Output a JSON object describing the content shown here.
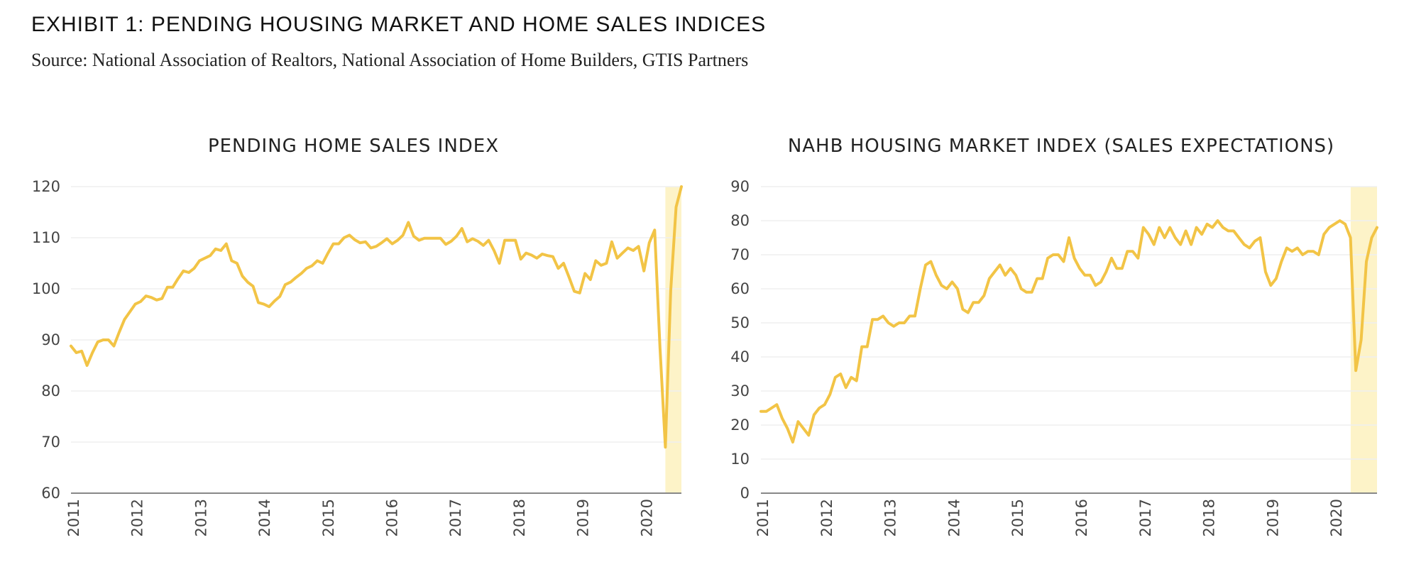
{
  "exhibit": {
    "title": "EXHIBIT 1: PENDING HOUSING MARKET AND HOME SALES INDICES",
    "source": "Source: National Association of Realtors, National Association of Home Builders, GTIS Partners"
  },
  "colors": {
    "line": "#F2C446",
    "highlight": "#FDF3C8",
    "grid": "#EFEFEF",
    "axis": "#888888"
  },
  "chart_data": [
    {
      "type": "line",
      "title": "PENDING HOME SALES INDEX",
      "xlabel": "",
      "ylabel": "",
      "x_range": [
        2011.0,
        2020.5
      ],
      "ylim": [
        60,
        120
      ],
      "y_ticks": [
        60,
        70,
        80,
        90,
        100,
        110,
        120
      ],
      "x_ticks": [
        "2011",
        "2012",
        "2013",
        "2014",
        "2015",
        "2016",
        "2017",
        "2018",
        "2019",
        "2020"
      ],
      "highlight_range": [
        2020.25,
        2020.5
      ],
      "grid": true,
      "series": [
        {
          "values": [
            88.8,
            87.5,
            87.8,
            85.0,
            87.5,
            89.6,
            90.0,
            90.0,
            88.8,
            91.5,
            94.0,
            95.5,
            97.0,
            97.5,
            98.6,
            98.3,
            97.8,
            98.1,
            100.3,
            100.3,
            102.0,
            103.5,
            103.2,
            104.0,
            105.5,
            106.0,
            106.5,
            107.8,
            107.5,
            108.8,
            105.5,
            105.0,
            102.5,
            101.3,
            100.5,
            97.3,
            97.0,
            96.5,
            97.6,
            98.5,
            100.8,
            101.3,
            102.2,
            103.0,
            104.0,
            104.5,
            105.5,
            105.0,
            107.0,
            108.8,
            108.8,
            110.0,
            110.5,
            109.6,
            109.0,
            109.2,
            108.0,
            108.3,
            109.0,
            109.8,
            108.8,
            109.5,
            110.5,
            113.0,
            110.3,
            109.5,
            109.9,
            109.9,
            109.9,
            109.9,
            108.7,
            109.3,
            110.3,
            111.8,
            109.2,
            109.8,
            109.3,
            108.5,
            109.5,
            107.5,
            105.0,
            109.5,
            109.5,
            109.5,
            105.8,
            107.0,
            106.6,
            106.0,
            106.8,
            106.5,
            106.3,
            104.0,
            105.0,
            102.3,
            99.5,
            99.2,
            103.0,
            101.8,
            105.5,
            104.6,
            105.0,
            109.2,
            106.0,
            107.0,
            108.0,
            107.5,
            108.3,
            103.5,
            109.0,
            111.5,
            88.5,
            69.0,
            99.6,
            116.0,
            120.0
          ]
        }
      ]
    },
    {
      "type": "line",
      "title": "NAHB HOUSING MARKET INDEX (SALES EXPECTATIONS)",
      "xlabel": "",
      "ylabel": "",
      "x_range": [
        2011.0,
        2020.58
      ],
      "ylim": [
        0,
        90
      ],
      "y_ticks": [
        0,
        10,
        20,
        30,
        40,
        50,
        60,
        70,
        80,
        90
      ],
      "x_ticks": [
        "2011",
        "2012",
        "2013",
        "2014",
        "2015",
        "2016",
        "2017",
        "2018",
        "2019",
        "2020"
      ],
      "highlight_range": [
        2020.17,
        2020.58
      ],
      "grid": true,
      "series": [
        {
          "values": [
            24,
            24,
            25,
            26,
            22,
            19,
            15,
            21,
            19,
            17,
            23,
            25,
            26,
            29,
            34,
            35,
            31,
            34,
            33,
            43,
            43,
            51,
            51,
            52,
            50,
            49,
            50,
            50,
            52,
            52,
            60,
            67,
            68,
            64,
            61,
            60,
            62,
            60,
            54,
            53,
            56,
            56,
            58,
            63,
            65,
            67,
            64,
            66,
            64,
            60,
            59,
            59,
            63,
            63,
            69,
            70,
            70,
            68,
            75,
            69,
            66,
            64,
            64,
            61,
            62,
            65,
            69,
            66,
            66,
            71,
            71,
            69,
            78,
            76,
            73,
            78,
            75,
            78,
            75,
            73,
            77,
            73,
            78,
            76,
            79,
            78,
            80,
            78,
            77,
            77,
            75,
            73,
            72,
            74,
            75,
            65,
            61,
            63,
            68,
            72,
            71,
            72,
            70,
            71,
            71,
            70,
            76,
            78,
            79,
            80,
            79,
            75,
            36,
            45,
            68,
            75,
            78
          ]
        }
      ]
    }
  ]
}
